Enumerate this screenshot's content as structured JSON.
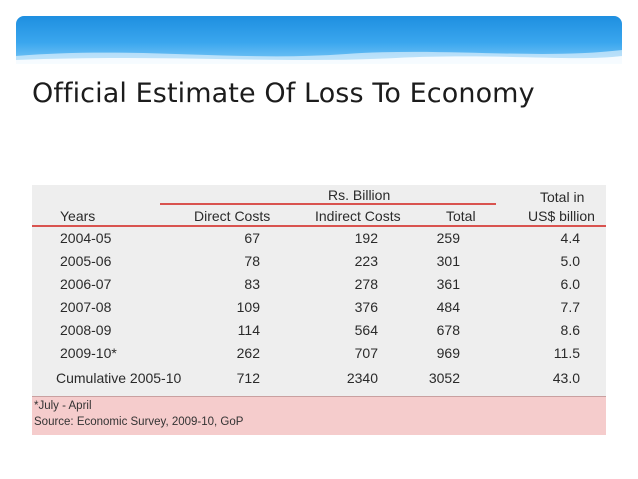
{
  "slide": {
    "title": "Official Estimate Of Loss To Economy"
  },
  "table": {
    "group_header": "Rs. Billion",
    "usd_header_line1": "Total in",
    "usd_header_line2": "US$ billion",
    "columns": [
      "Years",
      "Direct Costs",
      "Indirect Costs",
      "Total"
    ],
    "rows": [
      [
        "2004-05",
        "67",
        "192",
        "259",
        "4.4"
      ],
      [
        "2005-06",
        "78",
        "223",
        "301",
        "5.0"
      ],
      [
        "2006-07",
        "83",
        "278",
        "361",
        "6.0"
      ],
      [
        "2007-08",
        "109",
        "376",
        "484",
        "7.7"
      ],
      [
        "2008-09",
        "114",
        "564",
        "678",
        "8.6"
      ],
      [
        "2009-10*",
        "262",
        "707",
        "969",
        "11.5"
      ],
      [
        "Cumulative 2005-10",
        "712",
        "2340",
        "3052",
        "43.0"
      ]
    ],
    "footnote_1": "*July - April",
    "footnote_2": "Source: Economic Survey, 2009-10, GoP"
  },
  "colors": {
    "header_rule": "#d9534f",
    "footnote_bg": "#f5cccc",
    "banner": "#2a9be8"
  }
}
